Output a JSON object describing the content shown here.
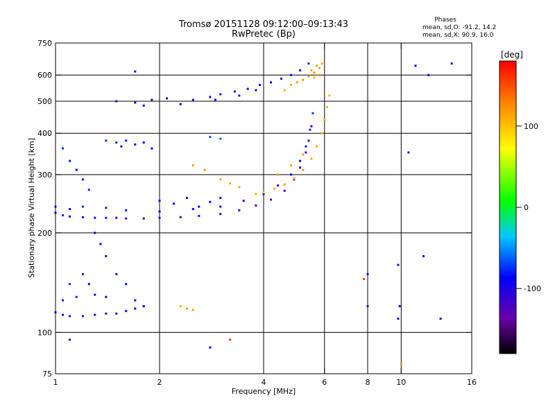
{
  "chart_data": {
    "type": "scatter",
    "title": "Tromsø 20151128 09:12:00–09:13:43",
    "subtitle": "RwPretec (Bp)",
    "xlabel": "Frequency [MHz]",
    "ylabel": "Stationary phase Virtual Height [km]",
    "x_scale": "log",
    "y_scale": "log",
    "xlim": [
      1,
      16
    ],
    "ylim": [
      75,
      750
    ],
    "x_ticks": [
      1,
      2,
      4,
      6,
      8,
      10,
      16
    ],
    "y_ticks": [
      75,
      100,
      200,
      300,
      400,
      500,
      600,
      750
    ],
    "x_grid": [
      2,
      4,
      6,
      8,
      10
    ],
    "y_grid": [
      100,
      200,
      300,
      400,
      500,
      600
    ],
    "phase_stats": {
      "heading": "Phases",
      "line_o": "mean, sd,O: -91.2, 14.2",
      "line_x": "mean, sd,X:  90.9, 16.0"
    },
    "colorbar": {
      "label": "[deg]",
      "range": [
        -180,
        180
      ],
      "ticks": [
        100,
        0,
        -100
      ]
    },
    "series": [
      {
        "points": [
          [
            1.0,
            230,
            -100
          ],
          [
            1.05,
            226,
            -105
          ],
          [
            1.1,
            224,
            -108
          ],
          [
            1.2,
            223,
            -110
          ],
          [
            1.3,
            222,
            -112
          ],
          [
            1.4,
            222,
            -113
          ],
          [
            1.5,
            222,
            -114
          ],
          [
            1.6,
            221,
            -115
          ],
          [
            1.8,
            221,
            -115
          ],
          [
            2.0,
            222,
            -116
          ],
          [
            2.3,
            223,
            -117
          ],
          [
            2.6,
            225,
            -118
          ],
          [
            3.0,
            228,
            -120
          ],
          [
            3.4,
            234,
            -122
          ],
          [
            3.8,
            242,
            -125
          ],
          [
            4.2,
            252,
            -128
          ],
          [
            4.6,
            268,
            -130
          ],
          [
            4.9,
            290,
            -128
          ],
          [
            5.1,
            315,
            -125
          ],
          [
            5.3,
            350,
            -122
          ],
          [
            5.4,
            380,
            -118
          ],
          [
            5.5,
            420,
            -115
          ]
        ]
      },
      {
        "points": [
          [
            1.0,
            240,
            -95
          ],
          [
            1.1,
            236,
            -95
          ],
          [
            1.2,
            240,
            -90
          ],
          [
            1.4,
            238,
            -92
          ],
          [
            1.6,
            234,
            -95
          ],
          [
            2.0,
            232,
            -100
          ],
          [
            2.5,
            236,
            -105
          ],
          [
            3.0,
            240,
            -108
          ],
          [
            3.5,
            250,
            -112
          ],
          [
            4.0,
            262,
            -115
          ],
          [
            4.4,
            278,
            -110
          ],
          [
            4.8,
            300,
            -105
          ],
          [
            5.1,
            330,
            -100
          ],
          [
            5.3,
            365,
            -95
          ],
          [
            5.45,
            410,
            -90
          ],
          [
            5.55,
            460,
            -85
          ]
        ]
      },
      {
        "points": [
          [
            1.5,
            500,
            -110
          ],
          [
            1.7,
            495,
            -115
          ],
          [
            1.9,
            505,
            -110
          ],
          [
            2.1,
            510,
            -108
          ],
          [
            2.5,
            505,
            -112
          ],
          [
            2.8,
            515,
            -110
          ],
          [
            3.0,
            525,
            -108
          ],
          [
            3.3,
            535,
            -105
          ],
          [
            3.6,
            545,
            -110
          ],
          [
            3.9,
            560,
            -105
          ],
          [
            4.2,
            570,
            -102
          ],
          [
            4.5,
            585,
            -100
          ],
          [
            4.8,
            600,
            -98
          ],
          [
            5.1,
            620,
            -95
          ],
          [
            5.4,
            650,
            -90
          ],
          [
            1.8,
            485,
            -112
          ],
          [
            2.3,
            490,
            -108
          ],
          [
            2.9,
            505,
            -112
          ],
          [
            3.4,
            520,
            -110
          ],
          [
            3.8,
            540,
            -108
          ]
        ]
      },
      {
        "points": [
          [
            4.8,
            560,
            110
          ],
          [
            5.0,
            570,
            115
          ],
          [
            5.2,
            580,
            120
          ],
          [
            5.4,
            595,
            118
          ],
          [
            5.6,
            610,
            122
          ],
          [
            5.8,
            630,
            115
          ],
          [
            5.9,
            650,
            110
          ],
          [
            4.6,
            540,
            105
          ],
          [
            5.5,
            620,
            112
          ],
          [
            5.7,
            640,
            118
          ],
          [
            5.8,
            600,
            125
          ],
          [
            5.6,
            590,
            108
          ]
        ]
      },
      {
        "points": [
          [
            3.8,
            262,
            110
          ],
          [
            4.0,
            265,
            112
          ],
          [
            4.3,
            272,
            115
          ],
          [
            4.6,
            280,
            118
          ],
          [
            4.9,
            292,
            120
          ],
          [
            5.2,
            310,
            118
          ],
          [
            5.5,
            335,
            115
          ],
          [
            5.7,
            365,
            112
          ],
          [
            5.9,
            400,
            110
          ],
          [
            6.0,
            440,
            108
          ],
          [
            6.1,
            480,
            105
          ],
          [
            6.2,
            520,
            102
          ],
          [
            3.4,
            275,
            112
          ],
          [
            3.0,
            290,
            115
          ],
          [
            2.7,
            310,
            118
          ],
          [
            2.5,
            320,
            115
          ],
          [
            3.2,
            282,
            110
          ],
          [
            4.4,
            300,
            115
          ],
          [
            4.8,
            320,
            112
          ],
          [
            5.2,
            345,
            118
          ]
        ]
      },
      {
        "points": [
          [
            1.05,
            360,
            -90
          ],
          [
            1.1,
            330,
            -95
          ],
          [
            1.15,
            310,
            -100
          ],
          [
            1.2,
            290,
            -95
          ],
          [
            1.25,
            270,
            -90
          ],
          [
            1.3,
            200,
            -100
          ],
          [
            1.35,
            185,
            -105
          ],
          [
            1.4,
            170,
            -110
          ],
          [
            1.2,
            150,
            -95
          ],
          [
            1.25,
            140,
            -100
          ],
          [
            1.3,
            130,
            -105
          ],
          [
            1.4,
            128,
            -110
          ],
          [
            1.5,
            150,
            -95
          ],
          [
            1.6,
            140,
            -100
          ],
          [
            1.7,
            125,
            -105
          ],
          [
            1.8,
            120,
            -110
          ],
          [
            1.1,
            140,
            -90
          ],
          [
            1.15,
            128,
            -92
          ],
          [
            1.05,
            125,
            -95
          ]
        ]
      },
      {
        "points": [
          [
            1.0,
            115,
            -110
          ],
          [
            1.05,
            113,
            -112
          ],
          [
            1.1,
            112,
            -114
          ],
          [
            1.2,
            112,
            -115
          ],
          [
            1.3,
            113,
            -115
          ],
          [
            1.4,
            114,
            -116
          ],
          [
            1.5,
            114,
            -115
          ],
          [
            1.6,
            116,
            -112
          ],
          [
            1.7,
            118,
            -110
          ],
          [
            1.8,
            120,
            -110
          ]
        ]
      },
      {
        "points": [
          [
            1.6,
            380,
            -95
          ],
          [
            1.7,
            370,
            -100
          ],
          [
            1.8,
            375,
            -102
          ],
          [
            1.9,
            360,
            -98
          ],
          [
            1.4,
            380,
            -90
          ],
          [
            1.5,
            375,
            -92
          ],
          [
            1.55,
            365,
            -95
          ],
          [
            2.0,
            250,
            -100
          ],
          [
            2.2,
            245,
            -102
          ],
          [
            2.4,
            255,
            -98
          ],
          [
            2.6,
            240,
            -100
          ],
          [
            2.8,
            248,
            -102
          ],
          [
            3.0,
            255,
            -105
          ],
          [
            2.8,
            390,
            -80
          ],
          [
            3.0,
            385,
            -75
          ]
        ]
      },
      {
        "points": [
          [
            2.3,
            120,
            110
          ],
          [
            2.4,
            118,
            115
          ],
          [
            2.5,
            117,
            118
          ],
          [
            8.0,
            120,
            -110
          ],
          [
            8.0,
            150,
            -100
          ],
          [
            9.8,
            160,
            -110
          ],
          [
            9.9,
            120,
            -105
          ],
          [
            9.8,
            110,
            -100
          ],
          [
            11.6,
            170,
            -108
          ],
          [
            10.5,
            350,
            -115
          ],
          [
            14.0,
            650,
            -110
          ],
          [
            1.7,
            615,
            -115
          ],
          [
            13.0,
            110,
            -100
          ],
          [
            7.8,
            145,
            150
          ],
          [
            1.1,
            95,
            -115
          ],
          [
            2.8,
            90,
            -110
          ],
          [
            3.2,
            95,
            160
          ],
          [
            10.0,
            80,
            120
          ],
          [
            12.0,
            600,
            -100
          ],
          [
            11.0,
            640,
            -105
          ]
        ]
      }
    ]
  }
}
